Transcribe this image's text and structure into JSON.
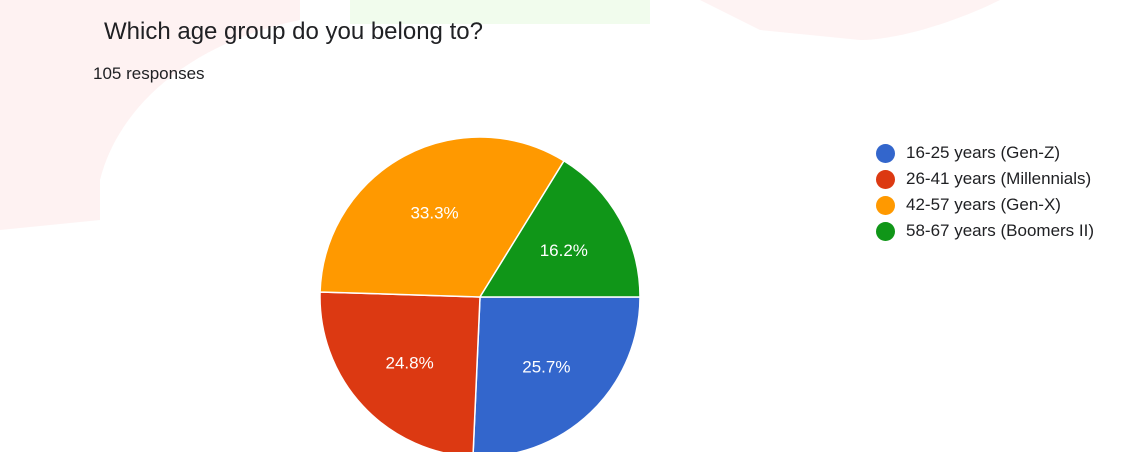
{
  "chart_data": {
    "type": "pie",
    "title": "Which age group do you belong to?",
    "subtitle": "105 responses",
    "legend_position": "right",
    "slices": [
      {
        "label": "16-25 years (Gen-Z)",
        "value": 25.7,
        "display": "25.7%",
        "color": "#3366cc"
      },
      {
        "label": "26-41 years (Millennials)",
        "value": 24.8,
        "display": "24.8%",
        "color": "#dc3912"
      },
      {
        "label": "42-57 years (Gen-X)",
        "value": 33.3,
        "display": "33.3%",
        "color": "#ff9900"
      },
      {
        "label": "58-67 years (Boomers II)",
        "value": 16.2,
        "display": "16.2%",
        "color": "#109618"
      }
    ]
  }
}
